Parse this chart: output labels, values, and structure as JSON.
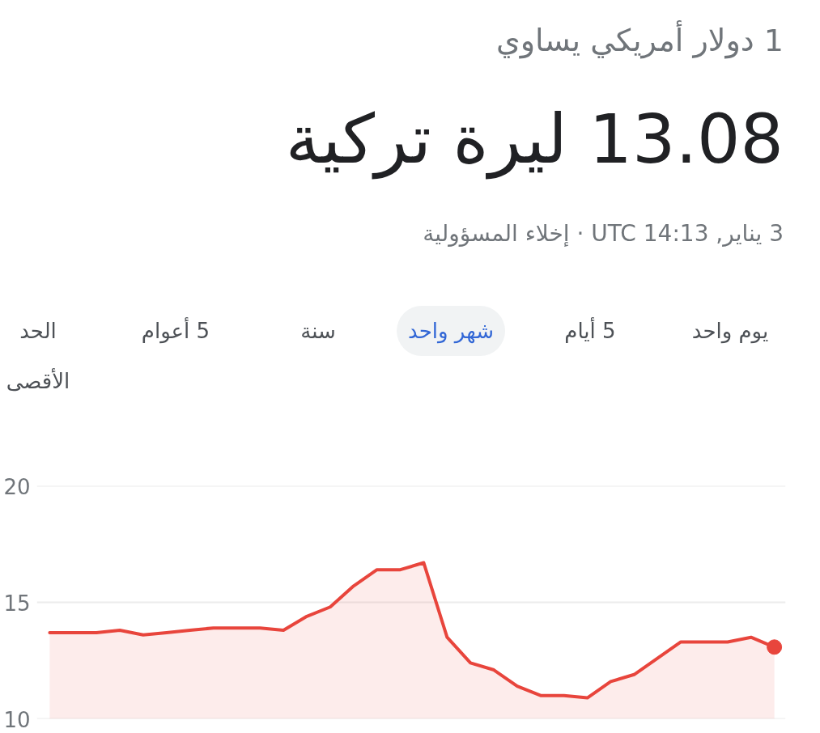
{
  "chart_data": {
    "type": "area",
    "title": "1 دولار أمريكي يساوي",
    "subtitle": "13.08 ليرة تركية",
    "annotations": [
      "3 يناير, UTC 14:13 · إخلاء المسؤولية",
      "يوم واحد",
      "5 أيام",
      "شهر واحد",
      "سنة",
      "5 أعوام",
      "الحد الأقصى"
    ],
    "categories": [
      null,
      null,
      null,
      null,
      null,
      null,
      null,
      null,
      null,
      null,
      null,
      null,
      null,
      null,
      null,
      null,
      null,
      null,
      null,
      null,
      null,
      null,
      null,
      null,
      null,
      null,
      null,
      null,
      null,
      null,
      null,
      null
    ],
    "series": [
      {
        "color": "#e8453c",
        "values": [
          13.7,
          13.7,
          13.7,
          13.8,
          13.6,
          13.7,
          13.8,
          13.9,
          13.9,
          13.9,
          13.8,
          14.4,
          14.8,
          15.7,
          16.4,
          16.4,
          16.7,
          13.5,
          12.4,
          12.1,
          11.4,
          11.0,
          11.0,
          10.9,
          11.6,
          11.9,
          12.6,
          13.3,
          13.3,
          13.3,
          13.5,
          13.08
        ]
      }
    ],
    "ylim": [
      10,
      20
    ],
    "yticks": [
      10,
      15,
      20
    ],
    "grid": "y",
    "tick_labels": "y"
  }
}
